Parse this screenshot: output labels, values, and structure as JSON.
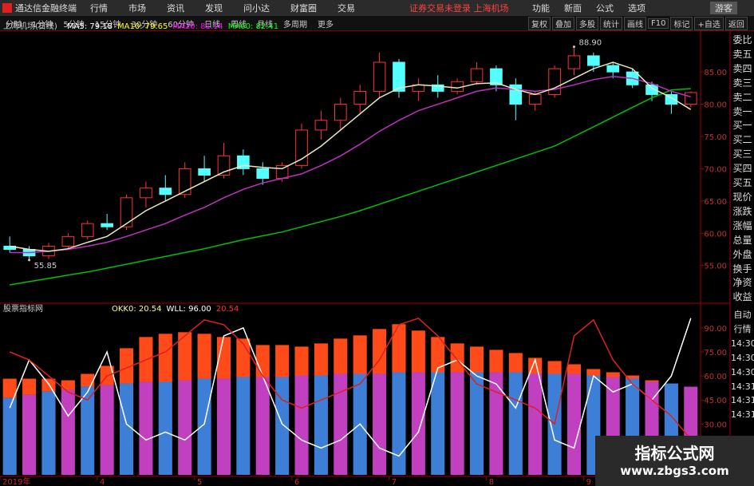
{
  "app_title": "通达信金融终端",
  "menu": [
    "行情",
    "市场",
    "资讯",
    "发现",
    "问小达",
    "财富圈",
    "交易"
  ],
  "status": "证券交易未登录  上海机场",
  "top_right": [
    "功能",
    "新面",
    "公式",
    "选项"
  ],
  "user": "游客",
  "periods": [
    "分时",
    "1分钟",
    "5分钟",
    "15分钟",
    "30分钟",
    "60分钟",
    "日线",
    "周线",
    "月线",
    "多周期",
    "更多"
  ],
  "tools": [
    "复权",
    "叠加",
    "多股",
    "统计",
    "画线",
    "F10",
    "标记",
    "+自选",
    "返回"
  ],
  "quote_fields": [
    "委比",
    "卖五",
    "卖四",
    "卖三",
    "卖二",
    "卖一",
    "买一",
    "买二",
    "买三",
    "买四",
    "买五",
    "现价",
    "涨跌",
    "涨幅",
    "总量",
    "外盘",
    "换手",
    "净资",
    "收益"
  ],
  "ticks_side": [
    "自动",
    "行情",
    "14:30",
    "14:30",
    "14:30",
    "14:31",
    "14:31",
    "14:31"
  ],
  "watermark": {
    "title": "指标公式网",
    "url": "www.zbgs3.com"
  },
  "chart_data": [
    {
      "type": "candlestick",
      "title": "上海机场(日线)",
      "legend": [
        {
          "text": "MA5: 79.18",
          "color": "#ffffff"
        },
        {
          "text": "MA10: 79.65",
          "color": "#ffff00"
        },
        {
          "text": "MA20: 81.14",
          "color": "#ff00ff"
        },
        {
          "text": "MA60: 82.41",
          "color": "#00ff00"
        }
      ],
      "categories": [
        "2019年",
        null,
        null,
        null,
        null,
        "4",
        null,
        null,
        null,
        null,
        "5",
        null,
        null,
        null,
        null,
        "6",
        null,
        null,
        null,
        null,
        "7",
        null,
        null,
        null,
        null,
        "8",
        null,
        null,
        null,
        null,
        "9",
        null,
        null,
        null,
        null,
        null
      ],
      "open": [
        58,
        57.5,
        56.5,
        58,
        59.5,
        61.5,
        61,
        65.5,
        67,
        66,
        70,
        69,
        72,
        70,
        68.5,
        70.5,
        76,
        77.5,
        80,
        82,
        86.5,
        82,
        83,
        82,
        83.5,
        85.5,
        83,
        80,
        81.5,
        85.5,
        87.5,
        86,
        85,
        83,
        81.5,
        80
      ],
      "high": [
        59.5,
        58,
        58.5,
        60,
        62,
        63,
        66,
        68,
        69,
        71,
        72,
        74,
        73,
        71,
        71,
        77,
        79,
        81,
        83,
        88,
        87,
        84,
        84.5,
        84,
        86.5,
        86,
        84,
        82,
        86,
        88.9,
        88,
        86.5,
        85.5,
        83.5,
        82,
        82
      ],
      "low": [
        57,
        55.85,
        56,
        57.5,
        59,
        60.5,
        60.5,
        64,
        65,
        65.5,
        68,
        68.5,
        69,
        67.5,
        68,
        70,
        74.5,
        76,
        78.5,
        81,
        81,
        80.5,
        81,
        81.5,
        83,
        82,
        77.5,
        79,
        81,
        84.5,
        85,
        84,
        82.5,
        80.5,
        78.5,
        79.5
      ],
      "close": [
        57.5,
        56.5,
        58,
        59.5,
        61.5,
        61,
        65.5,
        67,
        66,
        70,
        69,
        72,
        70,
        68.5,
        70.5,
        76,
        77.5,
        80,
        82,
        86.5,
        82,
        83,
        82,
        83.5,
        85.5,
        83,
        80,
        81.5,
        85.5,
        87.5,
        86,
        85,
        83,
        81.5,
        80,
        81.8
      ],
      "up_color": "#ff3232",
      "down_color": "#54ffff",
      "series": [
        {
          "color": "#00c000",
          "values": [
            52,
            52.5,
            53,
            53.5,
            54,
            54.6,
            55.2,
            55.8,
            56.4,
            57,
            57.6,
            58.3,
            59,
            59.6,
            60.2,
            61,
            61.8,
            62.6,
            63.5,
            64.5,
            65.5,
            66.5,
            67.5,
            68.5,
            69.5,
            70.5,
            71.5,
            72.5,
            73.5,
            75,
            76.5,
            78,
            79.5,
            81,
            82.2,
            82.41
          ]
        },
        {
          "color": "#c030c0",
          "values": [
            57,
            57,
            57.2,
            57.5,
            58,
            58.6,
            59.5,
            60.5,
            61.5,
            62.8,
            64,
            65.5,
            66.8,
            67.8,
            68.5,
            69.2,
            70.5,
            72,
            73.8,
            75.8,
            77.5,
            79,
            80,
            81,
            82,
            82.5,
            82.3,
            82,
            82.3,
            83,
            83.8,
            84.3,
            84,
            83.2,
            82,
            81.14
          ]
        },
        {
          "color": "#e8e8c0",
          "values": [
            58,
            57.5,
            57.2,
            57.6,
            58.6,
            59.5,
            61.5,
            63.5,
            65,
            66.5,
            68,
            69.5,
            70.5,
            70.2,
            70,
            71.5,
            73.5,
            76,
            78.5,
            81,
            82.5,
            83,
            82.8,
            82.5,
            83.2,
            83.3,
            82.3,
            81.5,
            82.5,
            84,
            85.5,
            86.5,
            85.5,
            82.5,
            81,
            79.18
          ]
        }
      ],
      "annotations": [
        {
          "text": "88.90",
          "index": 29,
          "value": 88.9
        },
        {
          "text": "55.85",
          "index": 1,
          "value": 55.85
        }
      ],
      "ylim": [
        49.4,
        91.2
      ],
      "yticks": [
        {
          "value": 55,
          "label": "55.00"
        },
        {
          "value": 60,
          "label": "60.00"
        },
        {
          "value": 65,
          "label": "65.00"
        },
        {
          "value": 70,
          "label": "70.00"
        },
        {
          "value": 75,
          "label": "75.00"
        },
        {
          "value": 80,
          "label": "80.00"
        },
        {
          "value": 85,
          "label": "85.00"
        }
      ]
    },
    {
      "type": "indicator",
      "title": "股票指标网",
      "legend": [
        {
          "text": "OKK0: 20.54",
          "color": "#ffff80"
        },
        {
          "text": "WLL: 96.00",
          "color": "#ffffff"
        },
        {
          "text": "20.54",
          "color": "#ff3030"
        }
      ],
      "bars": [
        {
          "color": "#3d7fd6",
          "values": [
            48,
            50,
            52,
            53,
            55,
            56,
            57,
            58,
            58,
            59,
            60,
            60,
            61,
            61,
            61,
            62,
            62,
            63,
            63,
            63,
            64,
            64,
            64,
            64,
            64,
            64,
            64,
            63,
            63,
            63,
            62,
            61,
            60,
            58,
            57,
            55
          ]
        },
        {
          "color": "#ff4a1a",
          "values": [
            12,
            10,
            8,
            6,
            8,
            12,
            22,
            28,
            30,
            30,
            28,
            26,
            24,
            20,
            20,
            18,
            20,
            22,
            24,
            28,
            30,
            26,
            22,
            18,
            16,
            14,
            12,
            10,
            8,
            6,
            4,
            3,
            2,
            1,
            0,
            0
          ]
        }
      ],
      "series": [
        {
          "color": "#ffffff",
          "values": [
            40,
            70,
            55,
            35,
            50,
            75,
            30,
            20,
            25,
            20,
            30,
            85,
            90,
            60,
            30,
            20,
            15,
            20,
            30,
            15,
            10,
            25,
            65,
            70,
            60,
            55,
            40,
            70,
            20,
            15,
            60,
            50,
            55,
            45,
            60,
            96
          ]
        },
        {
          "color": "#e02020",
          "values": [
            75,
            70,
            60,
            50,
            45,
            60,
            65,
            70,
            75,
            85,
            95,
            92,
            80,
            60,
            45,
            40,
            45,
            50,
            55,
            70,
            92,
            96,
            85,
            70,
            55,
            50,
            45,
            40,
            30,
            85,
            95,
            70,
            55,
            45,
            35,
            20.54
          ]
        }
      ],
      "ylim": [
        -1.7,
        98.4
      ],
      "yticks": [
        {
          "value": 30,
          "label": "30.00"
        },
        {
          "value": 45,
          "label": "45.00"
        },
        {
          "value": 60,
          "label": "60.00"
        },
        {
          "value": 75,
          "label": "75.00"
        },
        {
          "value": 90,
          "label": "90.00"
        }
      ]
    }
  ]
}
